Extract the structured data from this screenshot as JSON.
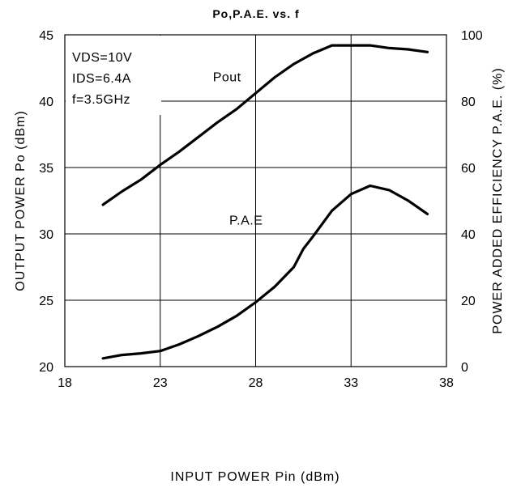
{
  "chart_data": {
    "type": "line",
    "title": "Po,P.A.E. vs. f",
    "xlabel": "INPUT POWER Pin (dBm)",
    "ylabel_left": "OUTPUT POWER Po (dBm)",
    "ylabel_right": "POWER ADDED EFFICIENCY P.A.E. (%)",
    "xlim": [
      18,
      38
    ],
    "ylim_left": [
      20,
      45
    ],
    "ylim_right": [
      0,
      100
    ],
    "x_ticks": [
      18,
      23,
      28,
      33,
      38
    ],
    "y_ticks_left": [
      20,
      25,
      30,
      35,
      40,
      45
    ],
    "y_ticks_right": [
      0,
      20,
      40,
      60,
      80,
      100
    ],
    "grid": true,
    "conditions": [
      "VDS=10V",
      "IDS=6.4A",
      "f=3.5GHz"
    ],
    "series": [
      {
        "name": "Pout",
        "axis": "left",
        "x": [
          20,
          21,
          22,
          23,
          24,
          25,
          26,
          27,
          28,
          29,
          30,
          31,
          32,
          33,
          34,
          35,
          36,
          37
        ],
        "y": [
          32.2,
          33.2,
          34.1,
          35.2,
          36.2,
          37.3,
          38.4,
          39.4,
          40.6,
          41.8,
          42.8,
          43.6,
          44.2,
          44.2,
          44.2,
          44.0,
          43.9,
          43.7
        ]
      },
      {
        "name": "P.A.E",
        "axis": "right",
        "x": [
          20,
          20.5,
          21,
          22,
          23,
          24,
          25,
          26,
          27,
          28,
          29,
          30,
          30.5,
          31,
          32,
          33,
          34,
          35,
          36,
          37
        ],
        "y": [
          2.5,
          3,
          3.5,
          4,
          4.7,
          6.7,
          9.2,
          12,
          15.3,
          19.4,
          24.1,
          30,
          35.5,
          39.2,
          47,
          52,
          54.5,
          53.2,
          50,
          46
        ]
      }
    ],
    "annotations": [
      {
        "text": "Pout",
        "near": "Pout",
        "x": 26.5,
        "y_left": 41.5
      },
      {
        "text": "P.A.E",
        "near": "P.A.E",
        "x": 27.5,
        "y_left": 30.7
      }
    ]
  }
}
